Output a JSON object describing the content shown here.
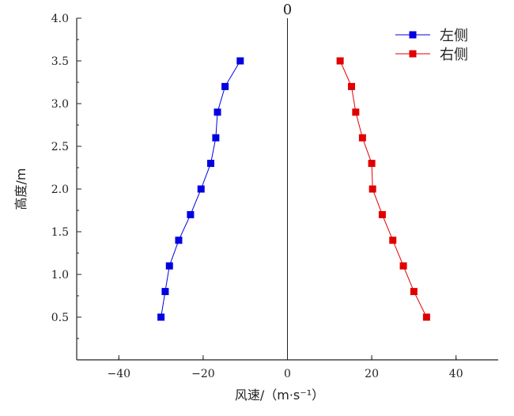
{
  "chart_data": {
    "type": "scatter",
    "xlabel": "风速/（m·s⁻¹）",
    "ylabel": "高度/m",
    "xlim": [
      -50,
      50
    ],
    "ylim": [
      0,
      4.0
    ],
    "xticks": [
      -40,
      -20,
      0,
      20,
      40
    ],
    "xtick_labels": [
      "−40",
      "−20",
      "0",
      "20",
      "40"
    ],
    "yticks": [
      0.5,
      1.0,
      1.5,
      2.0,
      2.5,
      3.0,
      3.5,
      4.0
    ],
    "ytick_labels": [
      "0.5",
      "1.0",
      "1.5",
      "2.0",
      "2.5",
      "3.0",
      "3.5",
      "4.0"
    ],
    "zero_line_label": "0",
    "grid": false,
    "legend_position": "top-right",
    "series": [
      {
        "name": "左侧",
        "color": "#0000e0",
        "marker": "square",
        "points": [
          {
            "x": -30.0,
            "y": 0.5
          },
          {
            "x": -29.0,
            "y": 0.8
          },
          {
            "x": -28.0,
            "y": 1.1
          },
          {
            "x": -25.8,
            "y": 1.4
          },
          {
            "x": -23.0,
            "y": 1.7
          },
          {
            "x": -20.5,
            "y": 2.0
          },
          {
            "x": -18.2,
            "y": 2.3
          },
          {
            "x": -17.0,
            "y": 2.6
          },
          {
            "x": -16.6,
            "y": 2.9
          },
          {
            "x": -14.8,
            "y": 3.2
          },
          {
            "x": -11.2,
            "y": 3.5
          }
        ]
      },
      {
        "name": "右侧",
        "color": "#e00000",
        "marker": "square",
        "points": [
          {
            "x": 33.0,
            "y": 0.5
          },
          {
            "x": 30.0,
            "y": 0.8
          },
          {
            "x": 27.5,
            "y": 1.1
          },
          {
            "x": 25.0,
            "y": 1.4
          },
          {
            "x": 22.5,
            "y": 1.7
          },
          {
            "x": 20.2,
            "y": 2.0
          },
          {
            "x": 20.0,
            "y": 2.3
          },
          {
            "x": 17.8,
            "y": 2.6
          },
          {
            "x": 16.2,
            "y": 2.9
          },
          {
            "x": 15.2,
            "y": 3.2
          },
          {
            "x": 12.5,
            "y": 3.5
          }
        ]
      }
    ]
  }
}
